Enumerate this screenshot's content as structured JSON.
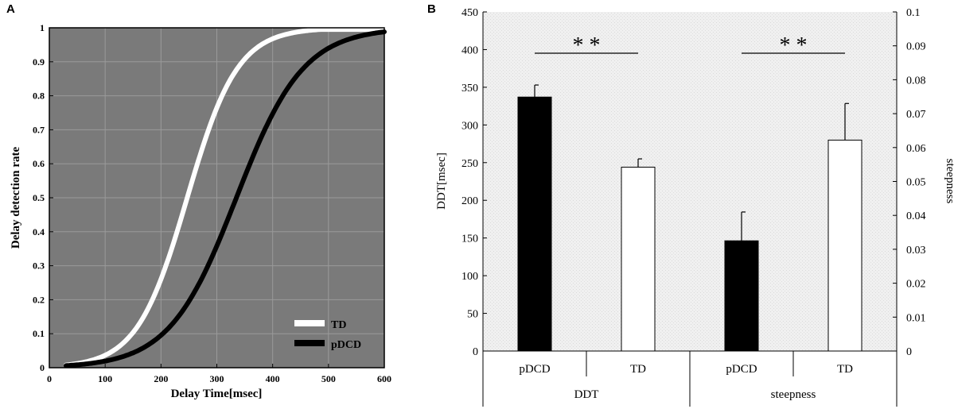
{
  "panels": {
    "a": "A",
    "b": "B"
  },
  "chart_data": [
    {
      "type": "line",
      "title": "",
      "xlabel": "Delay Time[msec]",
      "ylabel": "Delay detection rate",
      "xlim": [
        0,
        600
      ],
      "ylim": [
        0,
        1
      ],
      "xticks": [
        "0",
        "100",
        "200",
        "300",
        "400",
        "500",
        "600"
      ],
      "yticks": [
        "0",
        "0.1",
        "0.2",
        "0.3",
        "0.4",
        "0.5",
        "0.6",
        "0.7",
        "0.8",
        "0.9",
        "1"
      ],
      "grid": true,
      "legend": "bottom-right",
      "series": [
        {
          "name": "TD",
          "color": "#ffffff",
          "x_start": 30,
          "x_end": 600,
          "midpoint": 247,
          "scale": 45
        },
        {
          "name": "pDCD",
          "color": "#000000",
          "x_start": 30,
          "x_end": 600,
          "midpoint": 335,
          "scale": 60
        }
      ]
    },
    {
      "type": "bar",
      "title": "",
      "ylabel": "DDT[msec]",
      "y2label": "steepness",
      "ylim": [
        0,
        450
      ],
      "y2lim": [
        0,
        0.1
      ],
      "yticks": [
        "0",
        "50",
        "100",
        "150",
        "200",
        "250",
        "300",
        "350",
        "400",
        "450"
      ],
      "y2ticks": [
        "0",
        "0.01",
        "0.02",
        "0.03",
        "0.04",
        "0.05",
        "0.06",
        "0.07",
        "0.08",
        "0.09",
        "0.1"
      ],
      "groups": [
        "DDT",
        "steepness"
      ],
      "categories": [
        "pDCD",
        "TD",
        "pDCD",
        "TD"
      ],
      "bars": [
        {
          "group": "DDT",
          "label": "pDCD",
          "axis": "left",
          "value": 337,
          "error": 16,
          "color": "#000000"
        },
        {
          "group": "DDT",
          "label": "TD",
          "axis": "left",
          "value": 244,
          "error": 11,
          "color": "#ffffff"
        },
        {
          "group": "steepness",
          "label": "pDCD",
          "axis": "right",
          "value": 0.0325,
          "error": 0.0085,
          "color": "#000000"
        },
        {
          "group": "steepness",
          "label": "TD",
          "axis": "right",
          "value": 0.0622,
          "error": 0.0108,
          "color": "#ffffff"
        }
      ],
      "significance": [
        {
          "between": [
            0,
            1
          ],
          "label": "* *"
        },
        {
          "between": [
            2,
            3
          ],
          "label": "* *"
        }
      ]
    }
  ]
}
